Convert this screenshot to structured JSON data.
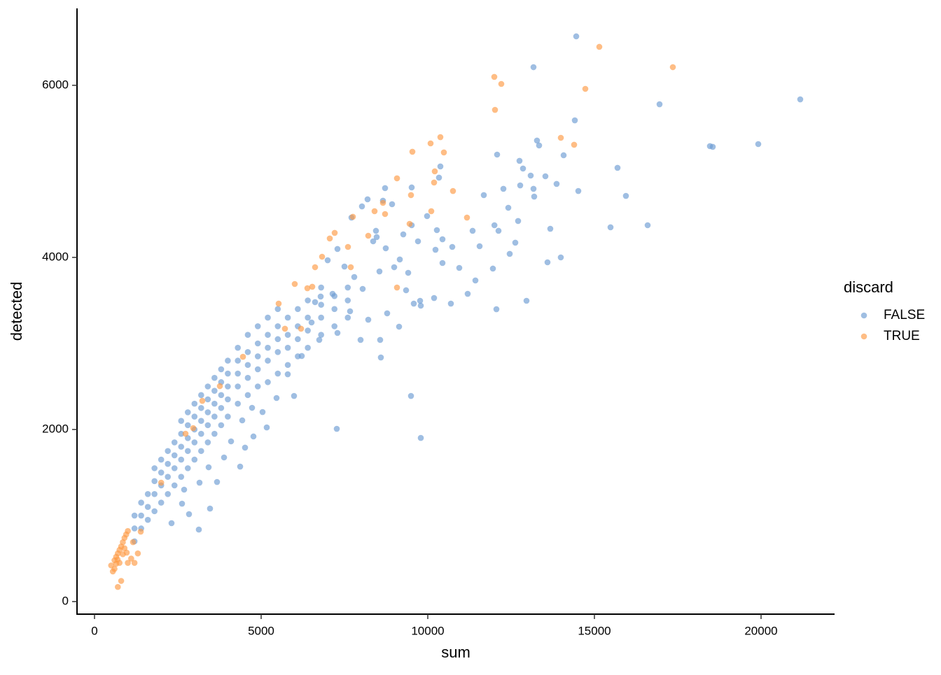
{
  "chart_data": {
    "type": "scatter",
    "x_label": "sum",
    "y_label": "detected",
    "legend_title": "discard",
    "legend_position": "right",
    "xlim": [
      -525,
      22206
    ],
    "ylim": [
      -146,
      6894
    ],
    "xticks": [
      0,
      5000,
      10000,
      15000,
      20000
    ],
    "yticks": [
      0,
      2000,
      4000,
      6000
    ],
    "series": [
      {
        "name": "FALSE",
        "color": "#6c9bd2",
        "x": [
          14454,
          13172,
          21176,
          16954,
          14412,
          19916,
          18466,
          18550,
          13277,
          13340,
          12080,
          14076,
          12752,
          12857,
          13088,
          13529,
          15693,
          13865,
          12773,
          13172,
          12269,
          14517,
          11681,
          13193,
          15945,
          12416,
          12710,
          13676,
          15483,
          16597,
          12000,
          12122,
          11345,
          12626,
          11555,
          11954,
          12059,
          12962,
          13592,
          13991,
          12458,
          11429,
          11197,
          10693,
          9790,
          10189,
          9769,
          10945,
          10441,
          10231,
          10735,
          10441,
          10273,
          9979,
          10378,
          10336,
          9517,
          8718,
          9496,
          9790,
          7269,
          8592,
          7983,
          8571,
          9139,
          8655,
          8025,
          7710,
          8445,
          8466,
          8739,
          9160,
          9706,
          9517,
          9265,
          8992,
          9412,
          8550,
          9349,
          9580,
          8781,
          8214,
          7668,
          7794,
          7500,
          7290,
          6996,
          7143,
          7290,
          6744,
          6513,
          6786,
          8046,
          8361,
          8193,
          8928,
          6618,
          6218,
          5798,
          5168,
          4769,
          4370,
          3130,
          3466,
          3676,
          3887,
          4097,
          4517,
          4433,
          5042,
          5462,
          5987,
          4727,
          2836,
          2626,
          2311,
          2689,
          3151,
          3424,
          1200,
          1200,
          1200,
          1400,
          1400,
          1400,
          1600,
          1600,
          1600,
          1800,
          1800,
          1800,
          1800,
          2000,
          2000,
          2000,
          2000,
          2200,
          2200,
          2200,
          2200,
          2400,
          2400,
          2400,
          2400,
          2600,
          2600,
          2600,
          2600,
          2600,
          2800,
          2800,
          2800,
          2800,
          2800,
          3000,
          3000,
          3000,
          3000,
          3000,
          3200,
          3200,
          3200,
          3200,
          3200,
          3400,
          3400,
          3400,
          3400,
          3400,
          3600,
          3600,
          3600,
          3600,
          3600,
          3800,
          3800,
          3800,
          3800,
          3800,
          4000,
          4000,
          4000,
          4000,
          4000,
          4300,
          4300,
          4300,
          4300,
          4300,
          4600,
          4600,
          4600,
          4600,
          4600,
          4900,
          4900,
          4900,
          4900,
          4900,
          5200,
          5200,
          5200,
          5200,
          5200,
          5500,
          5500,
          5500,
          5500,
          5500,
          5800,
          5800,
          5800,
          5800,
          6100,
          6100,
          6100,
          6100,
          6400,
          6400,
          6400,
          6400,
          6800,
          6800,
          6800,
          6800,
          7200,
          7200,
          7200,
          7600,
          7600,
          7600
        ],
        "values": [
          6569,
          6211,
          5837,
          5780,
          5593,
          5317,
          5293,
          5285,
          5358,
          5301,
          5195,
          5187,
          5122,
          5033,
          4951,
          4943,
          5041,
          4854,
          4837,
          4797,
          4797,
          4772,
          4724,
          4707,
          4715,
          4577,
          4423,
          4333,
          4350,
          4374,
          4374,
          4309,
          4309,
          4171,
          4130,
          3870,
          3398,
          3496,
          3943,
          4000,
          4041,
          3732,
          3577,
          3463,
          3439,
          3528,
          3496,
          3878,
          3935,
          4089,
          4122,
          4211,
          4317,
          4480,
          5057,
          4927,
          4813,
          4805,
          2390,
          1902,
          2008,
          2837,
          3041,
          3041,
          3195,
          4659,
          4593,
          4463,
          4309,
          4236,
          4106,
          3976,
          4187,
          4374,
          4268,
          3886,
          3821,
          3837,
          3618,
          3463,
          3350,
          3276,
          3374,
          3772,
          3894,
          4098,
          3967,
          3577,
          3122,
          3041,
          3244,
          3545,
          3634,
          4187,
          4675,
          4618,
          3480,
          2854,
          2642,
          2024,
          1919,
          1569,
          837,
          1081,
          1390,
          1675,
          1862,
          1789,
          2106,
          2203,
          2366,
          2390,
          2252,
          1016,
          1138,
          911,
          1301,
          1382,
          1561,
          700,
          850,
          1000,
          850,
          1000,
          1150,
          950,
          1100,
          1250,
          1050,
          1250,
          1400,
          1550,
          1150,
          1350,
          1500,
          1650,
          1250,
          1450,
          1600,
          1750,
          1350,
          1550,
          1700,
          1850,
          1450,
          1650,
          1800,
          1950,
          2100,
          1550,
          1750,
          1900,
          2050,
          2200,
          1650,
          1850,
          2000,
          2150,
          2300,
          1750,
          1950,
          2100,
          2250,
          2400,
          1850,
          2050,
          2200,
          2350,
          2500,
          1950,
          2150,
          2300,
          2450,
          2600,
          2050,
          2250,
          2400,
          2550,
          2700,
          2150,
          2350,
          2500,
          2650,
          2800,
          2300,
          2500,
          2650,
          2800,
          2950,
          2400,
          2600,
          2750,
          2900,
          3100,
          2500,
          2700,
          2850,
          3000,
          3200,
          2550,
          2800,
          2950,
          3100,
          3300,
          2650,
          2900,
          3050,
          3200,
          3400,
          2750,
          2950,
          3100,
          3300,
          2850,
          3050,
          3200,
          3400,
          2950,
          3150,
          3300,
          3500,
          3100,
          3300,
          3450,
          3650,
          3200,
          3400,
          3550,
          3300,
          3500,
          3650
        ]
      },
      {
        "name": "TRUE",
        "color": "#fd9a43",
        "x": [
          15147,
          17353,
          11996,
          12206,
          14727,
          12017,
          13992,
          14391,
          10378,
          10084,
          10483,
          9538,
          10210,
          10189,
          10756,
          9496,
          9076,
          10105,
          11176,
          8655,
          8403,
          7752,
          8718,
          9454,
          7206,
          8214,
          7605,
          7059,
          6828,
          7689,
          6618,
          6534,
          6387,
          9076,
          6008,
          5525,
          6197,
          5714,
          4454,
          3761,
          3235,
          2962,
          2731,
          2000,
          1387,
          1155,
          966,
          693,
          500,
          550,
          600,
          650,
          700,
          750,
          800,
          850,
          900,
          950,
          1000,
          700,
          800,
          600,
          900,
          1100,
          1200,
          1000,
          1300,
          750,
          650,
          850
        ],
        "values": [
          6447,
          6211,
          6098,
          6016,
          5959,
          5715,
          5390,
          5309,
          5398,
          5325,
          5220,
          5228,
          5000,
          4870,
          4772,
          4724,
          4919,
          4537,
          4463,
          4634,
          4537,
          4472,
          4504,
          4390,
          4285,
          4252,
          4122,
          4220,
          4008,
          3886,
          3886,
          3659,
          3642,
          3650,
          3691,
          3463,
          3171,
          3171,
          2845,
          2504,
          2333,
          2016,
          1951,
          1382,
          813,
          691,
          569,
          488,
          420,
          350,
          480,
          520,
          560,
          600,
          640,
          690,
          740,
          780,
          820,
          170,
          240,
          380,
          620,
          500,
          450,
          450,
          560,
          450,
          440,
          550
        ]
      }
    ]
  }
}
